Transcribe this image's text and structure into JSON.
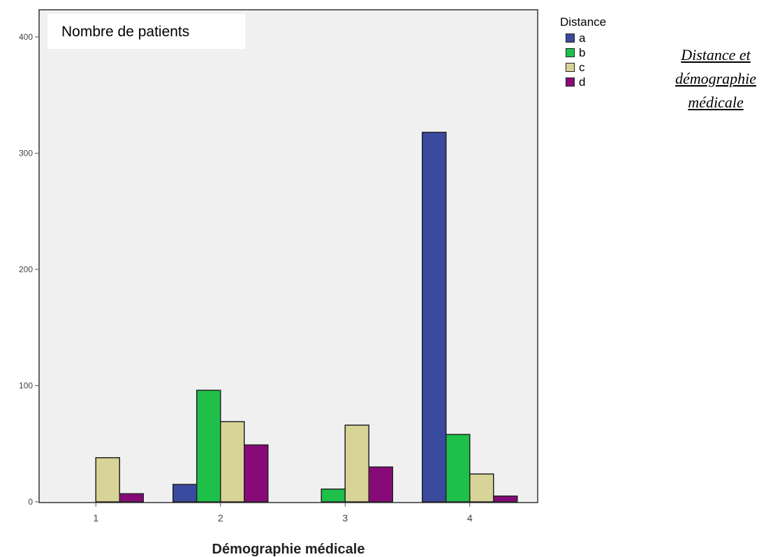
{
  "chart_data": {
    "type": "bar",
    "title": "Nombre de patients",
    "xlabel": "Démographie médicale",
    "ylabel": "",
    "categories": [
      "1",
      "2",
      "3",
      "4"
    ],
    "legend_title": "Distance",
    "legend_position": "top-right, outside plot",
    "series": [
      {
        "name": "a",
        "color": "#3a4a9e",
        "values": [
          0,
          15,
          0,
          318
        ]
      },
      {
        "name": "b",
        "color": "#1ec04a",
        "values": [
          0,
          96,
          11,
          58
        ]
      },
      {
        "name": "c",
        "color": "#d8d497",
        "values": [
          38,
          69,
          66,
          24
        ]
      },
      {
        "name": "d",
        "color": "#880a78",
        "values": [
          7,
          49,
          30,
          5
        ]
      }
    ],
    "ylim": [
      0,
      400
    ],
    "yticks": [
      "0",
      "100",
      "200",
      "300",
      "400"
    ],
    "grid": false,
    "plot_background": "#f0f0f0"
  },
  "side_title": {
    "line1": "Distance et",
    "line2": "démographie",
    "line3": "médicale"
  }
}
